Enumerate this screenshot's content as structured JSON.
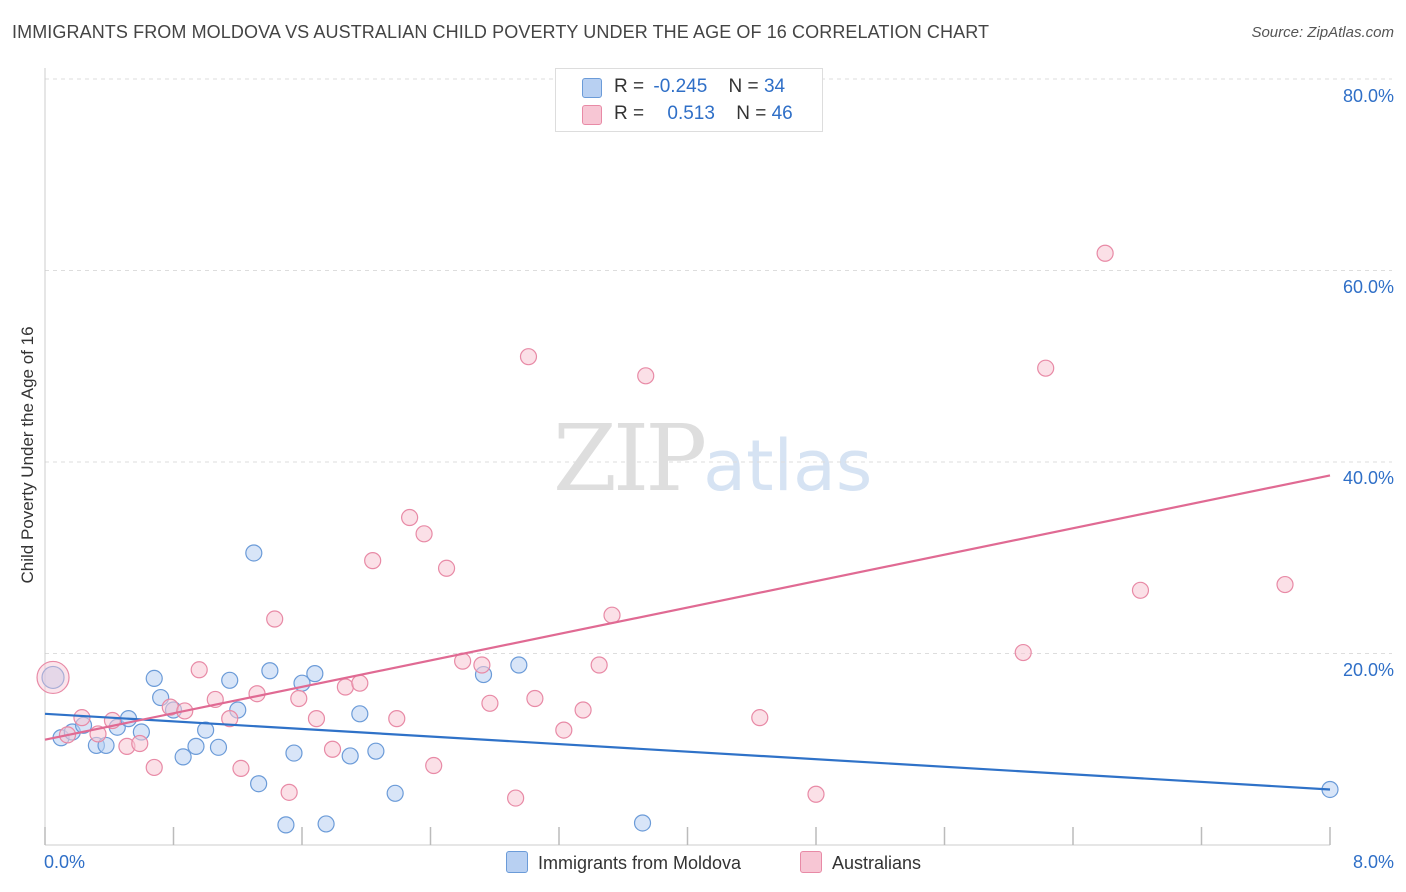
{
  "header": {
    "title": "IMMIGRANTS FROM MOLDOVA VS AUSTRALIAN CHILD POVERTY UNDER THE AGE OF 16 CORRELATION CHART",
    "source": "Source: ZipAtlas.com"
  },
  "legend": {
    "rows": [
      {
        "r_label": "R =",
        "r_value": "-0.245",
        "n_label": "N =",
        "n_value": "34"
      },
      {
        "r_label": "R =",
        "r_value": "0.513",
        "n_label": "N =",
        "n_value": "46"
      }
    ]
  },
  "bottom_legend": [
    "Immigrants from Moldova",
    "Australians"
  ],
  "watermark": {
    "zip": "ZIP",
    "atlas": "atlas"
  },
  "colors": {
    "blue_fill": "#b8d0f2",
    "blue_stroke": "#6b9bd8",
    "blue_line": "#2f72c8",
    "pink_fill": "#f7c6d4",
    "pink_stroke": "#e88aa6",
    "pink_line": "#e06a93",
    "tick_text": "#2f6fc7",
    "grid": "#dddddd"
  },
  "chart_data": {
    "type": "scatter",
    "title": "IMMIGRANTS FROM MOLDOVA VS AUSTRALIAN CHILD POVERTY UNDER THE AGE OF 16 CORRELATION CHART",
    "xlabel": "",
    "ylabel": "Child Poverty Under the Age of 16",
    "xlim": [
      0,
      8
    ],
    "ylim": [
      0,
      80
    ],
    "x_tick_labels": [
      "0.0%",
      "8.0%"
    ],
    "y_ticks": [
      20,
      40,
      60,
      80
    ],
    "y_tick_labels": [
      "20.0%",
      "40.0%",
      "60.0%",
      "80.0%"
    ],
    "grid": true,
    "series": [
      {
        "name": "Immigrants from Moldova",
        "color": "#b8d0f2",
        "r": "-0.245",
        "n": "34",
        "points": [
          [
            0.05,
            17.5
          ],
          [
            0.1,
            11.2
          ],
          [
            0.17,
            11.8
          ],
          [
            0.24,
            12.5
          ],
          [
            0.32,
            10.4
          ],
          [
            0.38,
            10.4
          ],
          [
            0.45,
            12.3
          ],
          [
            0.52,
            13.2
          ],
          [
            0.6,
            11.8
          ],
          [
            0.68,
            17.4
          ],
          [
            0.72,
            15.4
          ],
          [
            0.8,
            14.1
          ],
          [
            0.86,
            9.2
          ],
          [
            0.94,
            10.3
          ],
          [
            1.0,
            12.0
          ],
          [
            1.08,
            10.2
          ],
          [
            1.15,
            17.2
          ],
          [
            1.2,
            14.1
          ],
          [
            1.3,
            30.5
          ],
          [
            1.33,
            6.4
          ],
          [
            1.4,
            18.2
          ],
          [
            1.5,
            2.1
          ],
          [
            1.55,
            9.6
          ],
          [
            1.6,
            16.9
          ],
          [
            1.68,
            17.9
          ],
          [
            1.75,
            2.2
          ],
          [
            1.9,
            9.3
          ],
          [
            1.96,
            13.7
          ],
          [
            2.06,
            9.8
          ],
          [
            2.18,
            5.4
          ],
          [
            2.73,
            17.8
          ],
          [
            2.95,
            18.8
          ],
          [
            3.72,
            2.3
          ],
          [
            8.0,
            5.8
          ]
        ]
      },
      {
        "name": "Australians",
        "color": "#f7c6d4",
        "r": "0.513",
        "n": "46",
        "points": [
          [
            0.05,
            17.5
          ],
          [
            0.14,
            11.5
          ],
          [
            0.23,
            13.3
          ],
          [
            0.33,
            11.6
          ],
          [
            0.42,
            13.0
          ],
          [
            0.51,
            10.3
          ],
          [
            0.59,
            10.6
          ],
          [
            0.68,
            8.1
          ],
          [
            0.78,
            14.4
          ],
          [
            0.87,
            14.0
          ],
          [
            0.96,
            18.3
          ],
          [
            1.06,
            15.2
          ],
          [
            1.15,
            13.2
          ],
          [
            1.22,
            8.0
          ],
          [
            1.32,
            15.8
          ],
          [
            1.43,
            23.6
          ],
          [
            1.52,
            5.5
          ],
          [
            1.58,
            15.3
          ],
          [
            1.69,
            13.2
          ],
          [
            1.79,
            10.0
          ],
          [
            1.87,
            16.5
          ],
          [
            1.96,
            16.9
          ],
          [
            2.04,
            29.7
          ],
          [
            2.19,
            13.2
          ],
          [
            2.27,
            34.2
          ],
          [
            2.36,
            32.5
          ],
          [
            2.42,
            8.3
          ],
          [
            2.5,
            28.9
          ],
          [
            2.6,
            19.2
          ],
          [
            2.72,
            18.8
          ],
          [
            2.77,
            14.8
          ],
          [
            2.93,
            4.9
          ],
          [
            3.01,
            51.0
          ],
          [
            3.05,
            15.3
          ],
          [
            3.23,
            12.0
          ],
          [
            3.35,
            14.1
          ],
          [
            3.45,
            18.8
          ],
          [
            3.53,
            24.0
          ],
          [
            3.74,
            49.0
          ],
          [
            4.45,
            13.3
          ],
          [
            4.8,
            5.3
          ],
          [
            6.09,
            20.1
          ],
          [
            6.23,
            49.8
          ],
          [
            6.6,
            61.8
          ],
          [
            6.82,
            26.6
          ],
          [
            7.72,
            27.2
          ]
        ]
      }
    ],
    "trendlines": [
      {
        "series": "Immigrants from Moldova",
        "x": [
          0,
          8
        ],
        "y": [
          13.7,
          5.8
        ]
      },
      {
        "series": "Australians",
        "x": [
          0,
          8
        ],
        "y": [
          11.0,
          38.6
        ]
      }
    ]
  }
}
